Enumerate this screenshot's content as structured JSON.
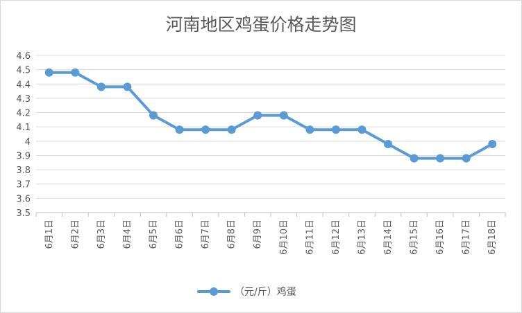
{
  "chart_data": {
    "type": "line",
    "title": "河南地区鸡蛋价格走势图",
    "categories": [
      "6月1日",
      "6月2日",
      "6月3日",
      "6月4日",
      "6月5日",
      "6月6日",
      "6月7日",
      "6月8日",
      "6月9日",
      "6月10日",
      "6月11日",
      "6月12日",
      "6月13日",
      "6月14日",
      "6月15日",
      "6月16日",
      "6月17日",
      "6月18日"
    ],
    "series": [
      {
        "name": "（元/斤）鸡蛋",
        "color": "#5b9bd5",
        "values": [
          4.48,
          4.48,
          4.38,
          4.38,
          4.18,
          4.08,
          4.08,
          4.08,
          4.18,
          4.18,
          4.08,
          4.08,
          4.08,
          3.98,
          3.88,
          3.88,
          3.88,
          3.98
        ]
      }
    ],
    "ylim": [
      3.5,
      4.6
    ],
    "yticks": [
      "3.5",
      "3.6",
      "3.7",
      "3.8",
      "3.9",
      "4",
      "4.1",
      "4.2",
      "4.3",
      "4.4",
      "4.5",
      "4.6"
    ],
    "ytick_values": [
      3.5,
      3.6,
      3.7,
      3.8,
      3.9,
      4.0,
      4.1,
      4.2,
      4.3,
      4.4,
      4.5,
      4.6
    ],
    "grid": true,
    "legend": "bottom"
  }
}
